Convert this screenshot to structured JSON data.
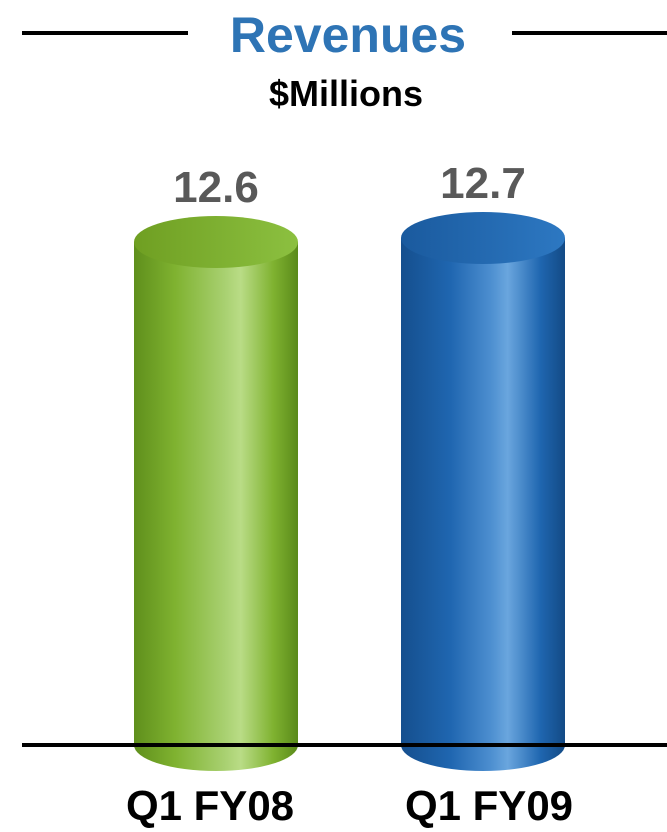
{
  "chart_data": {
    "type": "bar",
    "title": "Revenues",
    "subtitle": "$Millions",
    "categories": [
      "Q1 FY08",
      "Q1 FY09"
    ],
    "values": [
      12.6,
      12.7
    ],
    "data_labels": [
      "12.6",
      "12.7"
    ],
    "bar_style": "cylinder",
    "colors": {
      "title": "#2e74b5",
      "bars": [
        "#7aab2e",
        "#1f64ad"
      ],
      "data_label": "#595959",
      "axis": "#000000",
      "text": "#000000"
    },
    "xlabel": "",
    "ylabel": "",
    "ylim": [
      0,
      13.5
    ],
    "grid": false,
    "legend": "none"
  }
}
